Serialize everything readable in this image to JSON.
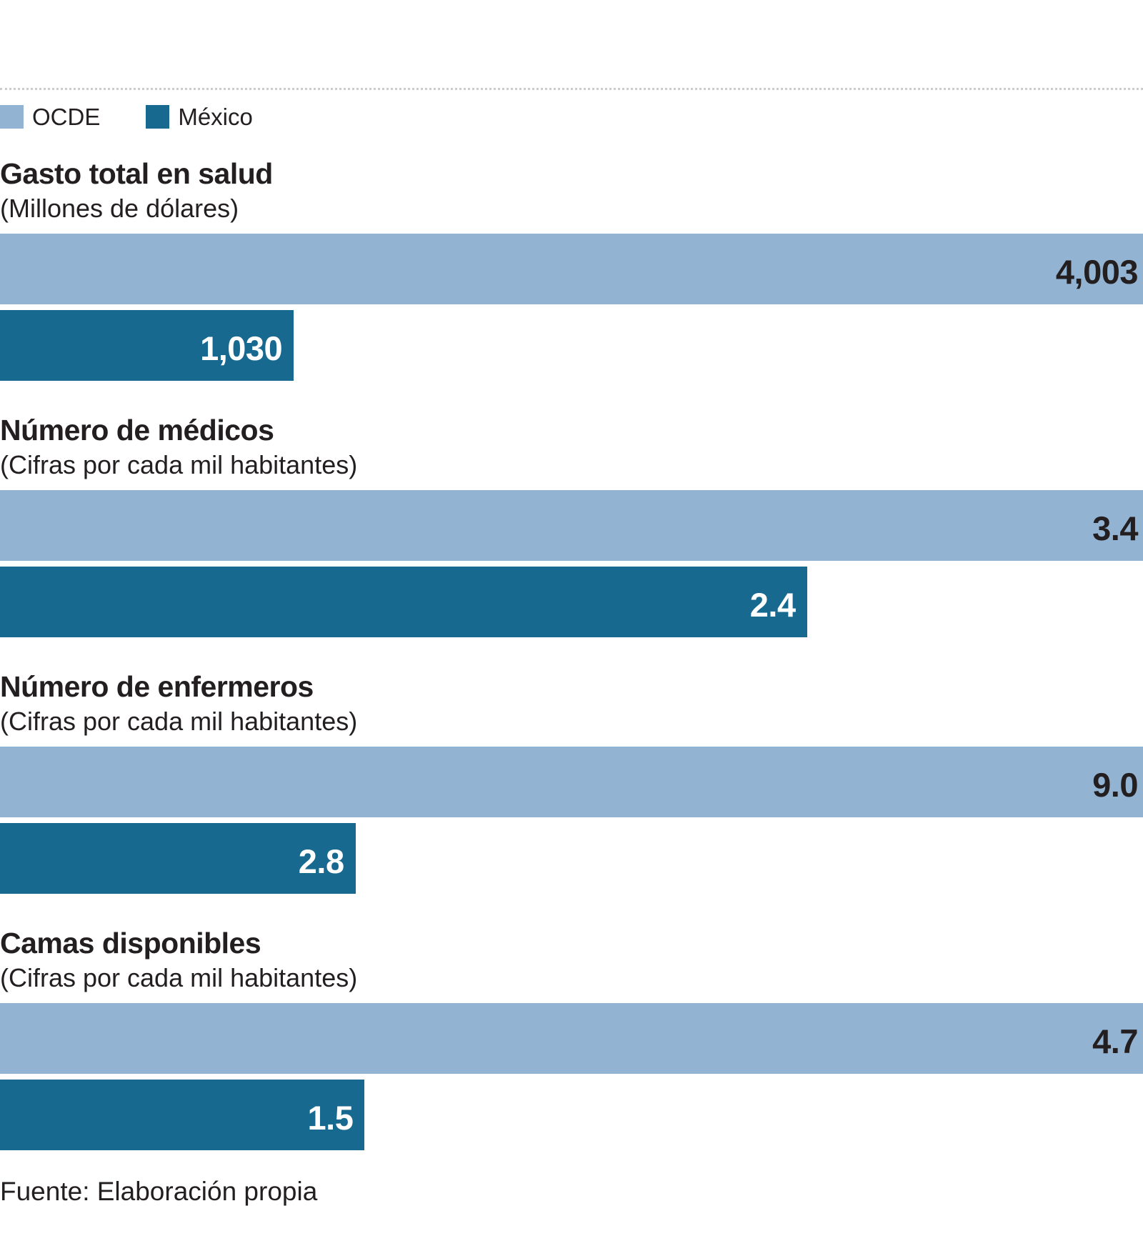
{
  "colors": {
    "ocde": "#93b3d3",
    "mexico": "#17698f",
    "text": "#231f20"
  },
  "legend": {
    "items": [
      {
        "label": "OCDE",
        "color": "#93b3d3"
      },
      {
        "label": "México",
        "color": "#17698f"
      }
    ]
  },
  "chart_data": [
    {
      "type": "bar",
      "orientation": "horizontal",
      "title": "Gasto total en salud",
      "subtitle": "(Millones de dólares)",
      "categories": [
        "OCDE",
        "México"
      ],
      "values": [
        4003,
        1030
      ],
      "labels": [
        "4,003",
        "1,030"
      ],
      "bar_width_pct": [
        100,
        25.7
      ]
    },
    {
      "type": "bar",
      "orientation": "horizontal",
      "title": "Número de médicos",
      "subtitle": "(Cifras por cada mil habitantes)",
      "categories": [
        "OCDE",
        "México"
      ],
      "values": [
        3.4,
        2.4
      ],
      "labels": [
        "3.4",
        "2.4"
      ],
      "bar_width_pct": [
        100,
        70.6
      ]
    },
    {
      "type": "bar",
      "orientation": "horizontal",
      "title": "Número de enfermeros",
      "subtitle": "(Cifras por cada mil habitantes)",
      "categories": [
        "OCDE",
        "México"
      ],
      "values": [
        9.0,
        2.8
      ],
      "labels": [
        "9.0",
        "2.8"
      ],
      "bar_width_pct": [
        100,
        31.1
      ]
    },
    {
      "type": "bar",
      "orientation": "horizontal",
      "title": "Camas disponibles",
      "subtitle": "(Cifras por cada mil habitantes)",
      "categories": [
        "OCDE",
        "México"
      ],
      "values": [
        4.7,
        1.5
      ],
      "labels": [
        "4.7",
        "1.5"
      ],
      "bar_width_pct": [
        100,
        31.9
      ]
    }
  ],
  "footer": {
    "source": "Fuente: Elaboración propia"
  }
}
